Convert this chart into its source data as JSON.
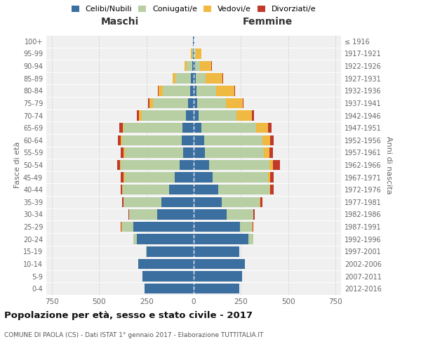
{
  "age_groups": [
    "0-4",
    "5-9",
    "10-14",
    "15-19",
    "20-24",
    "25-29",
    "30-34",
    "35-39",
    "40-44",
    "45-49",
    "50-54",
    "55-59",
    "60-64",
    "65-69",
    "70-74",
    "75-79",
    "80-84",
    "85-89",
    "90-94",
    "95-99",
    "100+"
  ],
  "birth_years": [
    "2012-2016",
    "2007-2011",
    "2002-2006",
    "1997-2001",
    "1992-1996",
    "1987-1991",
    "1982-1986",
    "1977-1981",
    "1972-1976",
    "1967-1971",
    "1962-1966",
    "1957-1961",
    "1952-1956",
    "1947-1951",
    "1942-1946",
    "1937-1941",
    "1932-1936",
    "1927-1931",
    "1922-1926",
    "1917-1921",
    "≤ 1916"
  ],
  "colors": {
    "celibe": "#3b6fa0",
    "coniugato": "#b8cfa4",
    "vedovo": "#f0b942",
    "divorziato": "#c0392b",
    "background": "#f0f0f0",
    "grid": "#cccccc"
  },
  "maschi": {
    "celibe": [
      260,
      270,
      295,
      250,
      300,
      320,
      195,
      170,
      130,
      100,
      75,
      55,
      65,
      60,
      40,
      30,
      20,
      15,
      8,
      4,
      2
    ],
    "coniugato": [
      0,
      0,
      0,
      2,
      20,
      60,
      145,
      200,
      245,
      265,
      310,
      310,
      315,
      310,
      235,
      185,
      145,
      80,
      30,
      5,
      1
    ],
    "vedovo": [
      0,
      0,
      0,
      0,
      0,
      2,
      2,
      2,
      3,
      5,
      5,
      5,
      5,
      5,
      15,
      20,
      20,
      15,
      10,
      5,
      0
    ],
    "divorziato": [
      0,
      0,
      0,
      0,
      0,
      3,
      5,
      8,
      10,
      15,
      15,
      18,
      18,
      18,
      10,
      8,
      5,
      3,
      2,
      0,
      0
    ]
  },
  "femmine": {
    "nubile": [
      240,
      255,
      270,
      240,
      290,
      245,
      175,
      150,
      130,
      100,
      80,
      60,
      55,
      40,
      25,
      20,
      15,
      12,
      8,
      5,
      2
    ],
    "coniugata": [
      0,
      0,
      0,
      3,
      25,
      65,
      140,
      200,
      270,
      295,
      320,
      310,
      310,
      290,
      200,
      150,
      105,
      50,
      25,
      5,
      1
    ],
    "vedova": [
      0,
      0,
      0,
      0,
      1,
      2,
      2,
      3,
      5,
      10,
      20,
      30,
      40,
      65,
      85,
      90,
      95,
      90,
      60,
      30,
      1
    ],
    "divorziata": [
      0,
      0,
      0,
      0,
      1,
      3,
      5,
      10,
      20,
      20,
      35,
      18,
      20,
      18,
      8,
      5,
      5,
      3,
      2,
      0,
      0
    ]
  },
  "xlim": 780,
  "title": "Popolazione per età, sesso e stato civile - 2017",
  "subtitle": "COMUNE DI PAOLA (CS) - Dati ISTAT 1° gennaio 2017 - Elaborazione TUTTITALIA.IT",
  "ylabel_left": "Fasce di età",
  "ylabel_right": "Anni di nascita",
  "xlabel_maschi": "Maschi",
  "xlabel_femmine": "Femmine"
}
